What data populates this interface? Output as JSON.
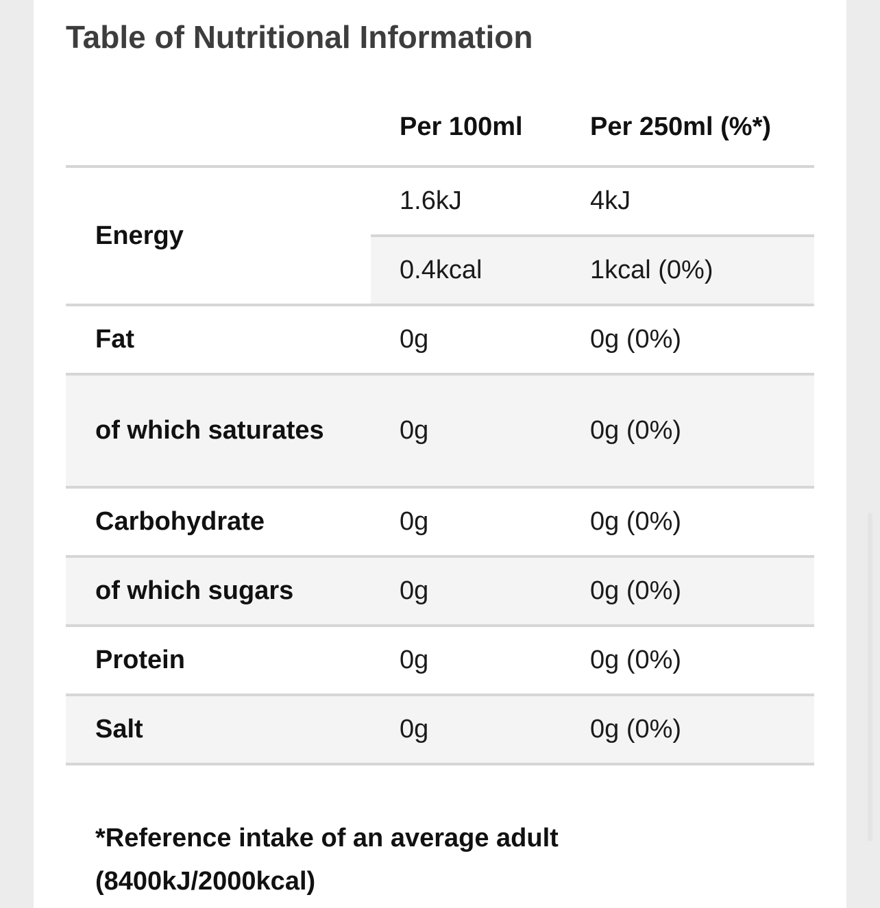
{
  "title": "Table of Nutritional Information",
  "table": {
    "headers": [
      "",
      "Per 100ml",
      "Per 250ml (%*)"
    ],
    "energy": {
      "label": "Energy",
      "kj_per_100ml": "1.6kJ",
      "kj_per_250ml": "4kJ",
      "kcal_per_100ml": "0.4kcal",
      "kcal_per_250ml": "1kcal (0%)"
    },
    "rows": [
      {
        "label": "Fat",
        "per_100ml": "0g",
        "per_250ml": "0g (0%)"
      },
      {
        "label": "of which saturates",
        "per_100ml": "0g",
        "per_250ml": "0g (0%)"
      },
      {
        "label": "Carbohydrate",
        "per_100ml": "0g",
        "per_250ml": "0g (0%)"
      },
      {
        "label": "of which sugars",
        "per_100ml": "0g",
        "per_250ml": "0g (0%)"
      },
      {
        "label": "Protein",
        "per_100ml": "0g",
        "per_250ml": "0g (0%)"
      },
      {
        "label": "Salt",
        "per_100ml": "0g",
        "per_250ml": "0g (0%)"
      }
    ]
  },
  "footnote": "*Reference intake of an average adult (8400kJ/2000kcal)",
  "colors": {
    "page_background": "#ffffff",
    "outer_background": "#ececec",
    "shaded_row": "#f4f4f4",
    "divider": "#d6d6d6",
    "title_text": "#3d3d3d",
    "body_text": "#111111"
  }
}
